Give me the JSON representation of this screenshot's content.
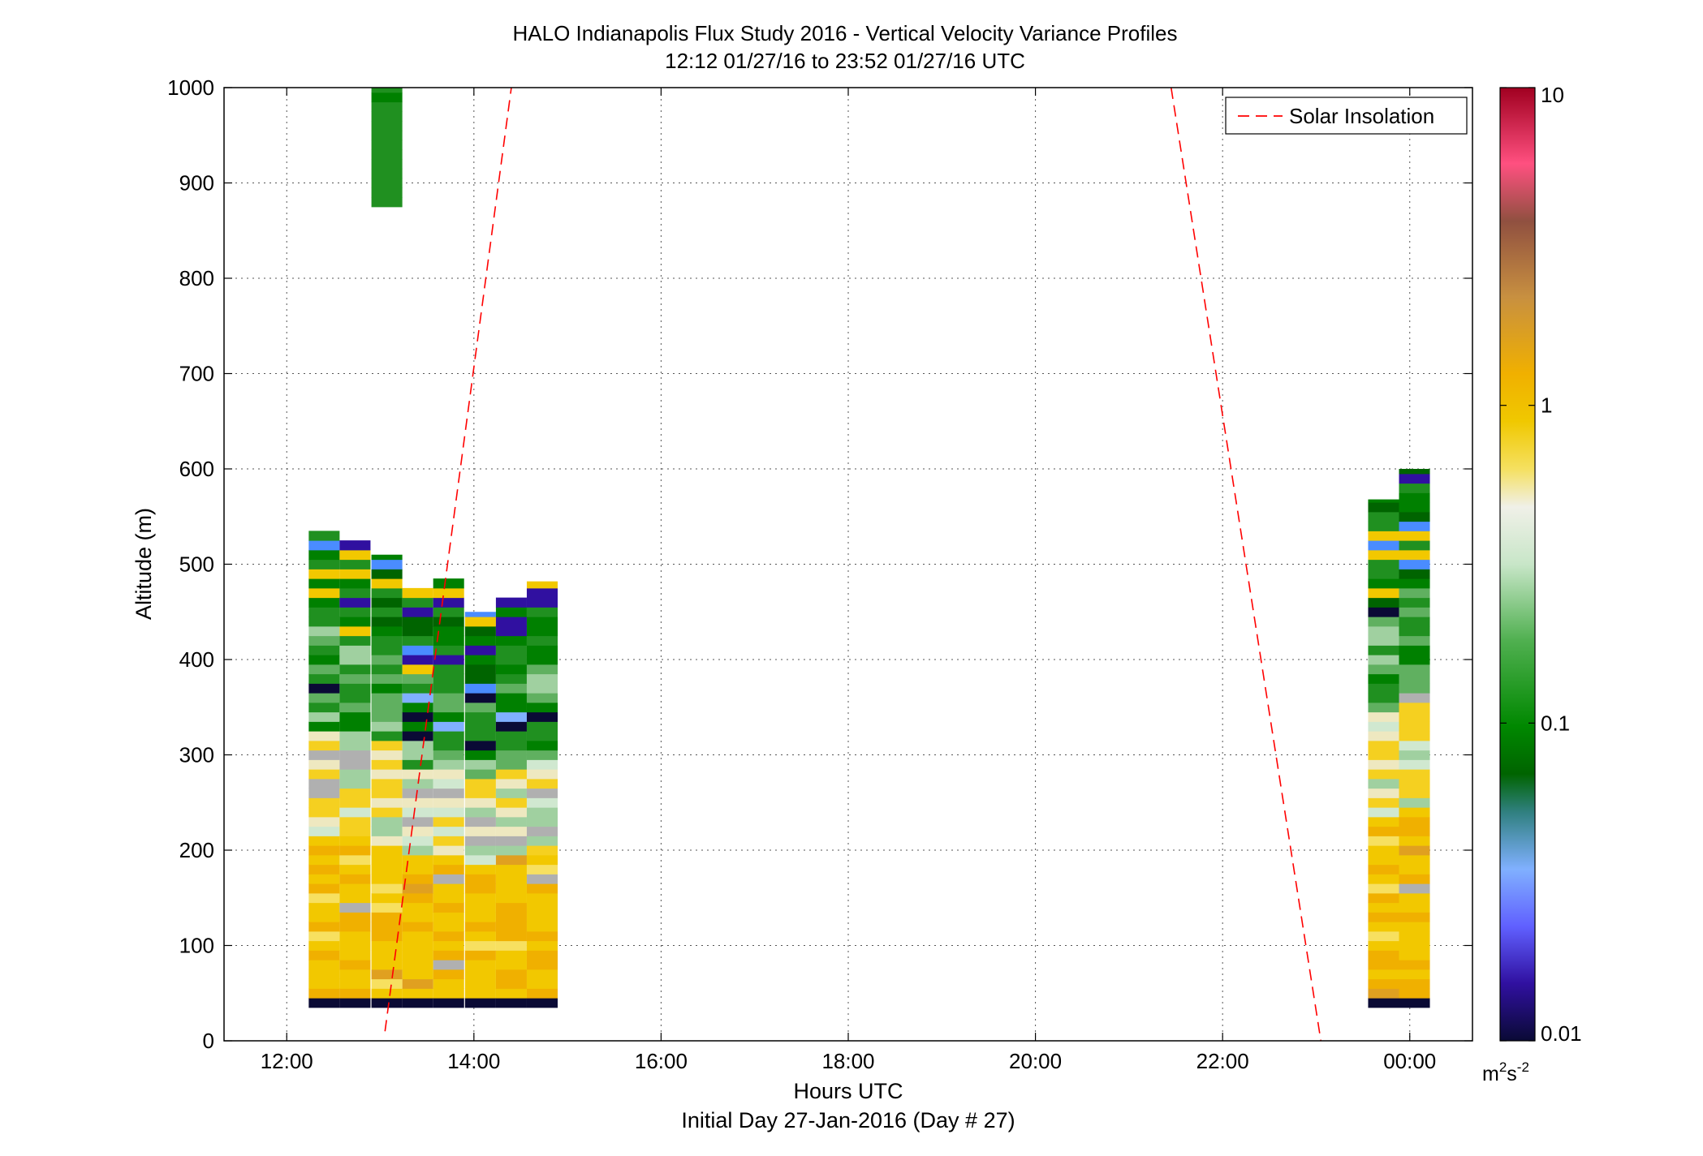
{
  "chart_data": {
    "type": "heatmap",
    "title": "HALO Indianapolis Flux Study 2016 - Vertical Velocity Variance Profiles",
    "subtitle": "12:12 01/27/16 to 23:52 01/27/16  UTC",
    "xlabel": "Hours UTC",
    "xlabel2": "Initial Day 27-Jan-2016 (Day # 27)",
    "ylabel": "Altitude (m)",
    "xlim": [
      11.33,
      24.67
    ],
    "ylim": [
      0,
      1000
    ],
    "x_ticks": [
      12,
      14,
      16,
      18,
      20,
      22,
      24
    ],
    "x_tick_labels": [
      "12:00",
      "14:00",
      "16:00",
      "18:00",
      "20:00",
      "22:00",
      "00:00"
    ],
    "y_ticks": [
      0,
      100,
      200,
      300,
      400,
      500,
      600,
      700,
      800,
      900,
      1000
    ],
    "y_tick_labels": [
      "0",
      "100",
      "200",
      "300",
      "400",
      "500",
      "600",
      "700",
      "800",
      "900",
      "1000"
    ],
    "grid": true,
    "legend": {
      "position": "top-right",
      "entries": [
        "Solar Insolation"
      ]
    },
    "colorbar": {
      "scale": "log",
      "range": [
        0.01,
        10
      ],
      "tick_values": [
        0.01,
        0.1,
        1,
        10
      ],
      "tick_labels": [
        "0.01",
        "0.1",
        "1",
        "10"
      ],
      "units_base": "m",
      "units_sup1": "2",
      "units_mid": "s",
      "units_sup2": "-2"
    },
    "solar_insolation_series": {
      "name": "Solar Insolation",
      "color": "#ff0000",
      "style": "dashed",
      "segments": [
        {
          "x": [
            13.05,
            14.4
          ],
          "y": [
            10,
            1000
          ]
        },
        {
          "x": [
            21.45,
            23.05
          ],
          "y": [
            1000,
            0
          ]
        }
      ]
    },
    "profile_columns": [
      {
        "time": 12.4,
        "bottom": 35,
        "top": 535
      },
      {
        "time": 12.73,
        "bottom": 35,
        "top": 525
      },
      {
        "time": 13.07,
        "bottom": 35,
        "top": 510
      },
      {
        "time": 13.4,
        "bottom": 35,
        "top": 475
      },
      {
        "time": 13.73,
        "bottom": 35,
        "top": 485
      },
      {
        "time": 14.07,
        "bottom": 35,
        "top": 450
      },
      {
        "time": 14.4,
        "bottom": 35,
        "top": 465
      },
      {
        "time": 14.73,
        "bottom": 35,
        "top": 482
      },
      {
        "time": 13.07,
        "bottom": 875,
        "top": 1000
      },
      {
        "time": 23.72,
        "bottom": 35,
        "top": 568
      },
      {
        "time": 24.05,
        "bottom": 35,
        "top": 600
      }
    ]
  }
}
